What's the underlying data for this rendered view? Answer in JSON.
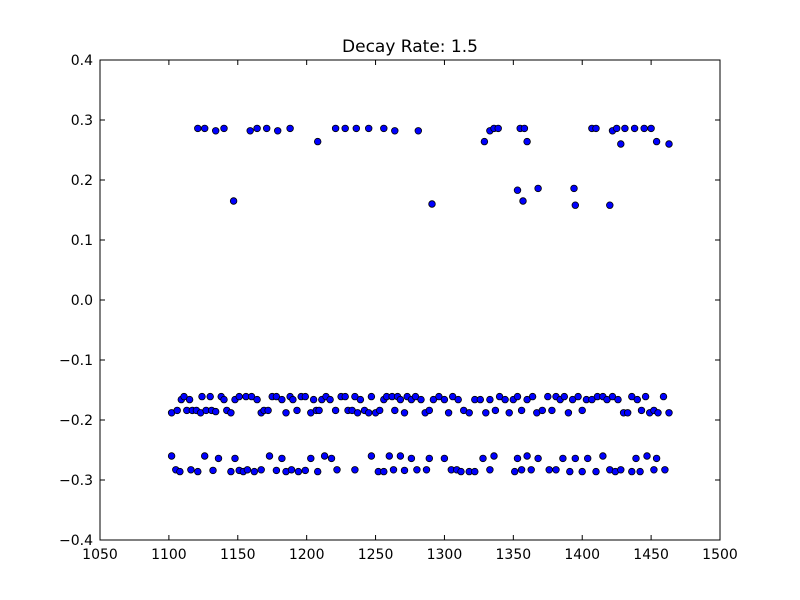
{
  "chart_data": {
    "type": "scatter",
    "title": "Decay Rate: 1.5",
    "xlabel": "",
    "ylabel": "",
    "xlim": [
      1050,
      1500
    ],
    "ylim": [
      -0.4,
      0.4
    ],
    "xticks": [
      1050,
      1100,
      1150,
      1200,
      1250,
      1300,
      1350,
      1400,
      1450,
      1500
    ],
    "yticks": [
      -0.4,
      -0.3,
      -0.2,
      -0.1,
      0.0,
      0.1,
      0.2,
      0.3,
      0.4
    ],
    "xtick_labels": [
      "1050",
      "1100",
      "1150",
      "1200",
      "1250",
      "1300",
      "1350",
      "1400",
      "1450",
      "1500"
    ],
    "ytick_labels": [
      "−0.4",
      "−0.3",
      "−0.2",
      "−0.1",
      "0.0",
      "0.1",
      "0.2",
      "0.3",
      "0.4"
    ],
    "grid": false,
    "legend": "none",
    "marker_color": "#0000ff",
    "marker_edge": "#000000",
    "points": [
      [
        1121,
        0.286
      ],
      [
        1126,
        0.286
      ],
      [
        1134,
        0.282
      ],
      [
        1140,
        0.286
      ],
      [
        1159,
        0.282
      ],
      [
        1164,
        0.286
      ],
      [
        1171,
        0.286
      ],
      [
        1179,
        0.282
      ],
      [
        1188,
        0.286
      ],
      [
        1208,
        0.264
      ],
      [
        1221,
        0.286
      ],
      [
        1228,
        0.286
      ],
      [
        1236,
        0.286
      ],
      [
        1245,
        0.286
      ],
      [
        1256,
        0.286
      ],
      [
        1264,
        0.282
      ],
      [
        1281,
        0.282
      ],
      [
        1329,
        0.264
      ],
      [
        1333,
        0.282
      ],
      [
        1336,
        0.286
      ],
      [
        1339,
        0.286
      ],
      [
        1355,
        0.286
      ],
      [
        1358,
        0.286
      ],
      [
        1360,
        0.264
      ],
      [
        1407,
        0.286
      ],
      [
        1410,
        0.286
      ],
      [
        1422,
        0.282
      ],
      [
        1425,
        0.286
      ],
      [
        1428,
        0.26
      ],
      [
        1431,
        0.286
      ],
      [
        1438,
        0.286
      ],
      [
        1445,
        0.286
      ],
      [
        1450,
        0.286
      ],
      [
        1454,
        0.264
      ],
      [
        1463,
        0.26
      ],
      [
        1147,
        0.165
      ],
      [
        1291,
        0.16
      ],
      [
        1353,
        0.183
      ],
      [
        1357,
        0.165
      ],
      [
        1368,
        0.186
      ],
      [
        1394,
        0.186
      ],
      [
        1395,
        0.158
      ],
      [
        1420,
        0.158
      ],
      [
        1102,
        -0.188
      ],
      [
        1106,
        -0.184
      ],
      [
        1109,
        -0.166
      ],
      [
        1111,
        -0.161
      ],
      [
        1113,
        -0.184
      ],
      [
        1115,
        -0.166
      ],
      [
        1117,
        -0.184
      ],
      [
        1120,
        -0.184
      ],
      [
        1123,
        -0.188
      ],
      [
        1124,
        -0.161
      ],
      [
        1127,
        -0.184
      ],
      [
        1130,
        -0.161
      ],
      [
        1131,
        -0.184
      ],
      [
        1134,
        -0.186
      ],
      [
        1138,
        -0.161
      ],
      [
        1140,
        -0.166
      ],
      [
        1142,
        -0.184
      ],
      [
        1145,
        -0.188
      ],
      [
        1148,
        -0.166
      ],
      [
        1151,
        -0.161
      ],
      [
        1156,
        -0.161
      ],
      [
        1160,
        -0.161
      ],
      [
        1164,
        -0.166
      ],
      [
        1167,
        -0.188
      ],
      [
        1169,
        -0.184
      ],
      [
        1172,
        -0.184
      ],
      [
        1175,
        -0.161
      ],
      [
        1178,
        -0.161
      ],
      [
        1182,
        -0.166
      ],
      [
        1185,
        -0.188
      ],
      [
        1188,
        -0.161
      ],
      [
        1190,
        -0.166
      ],
      [
        1193,
        -0.184
      ],
      [
        1196,
        -0.161
      ],
      [
        1199,
        -0.161
      ],
      [
        1203,
        -0.188
      ],
      [
        1205,
        -0.166
      ],
      [
        1207,
        -0.184
      ],
      [
        1209,
        -0.184
      ],
      [
        1211,
        -0.166
      ],
      [
        1214,
        -0.161
      ],
      [
        1217,
        -0.166
      ],
      [
        1221,
        -0.184
      ],
      [
        1225,
        -0.161
      ],
      [
        1228,
        -0.161
      ],
      [
        1230,
        -0.184
      ],
      [
        1233,
        -0.184
      ],
      [
        1235,
        -0.161
      ],
      [
        1237,
        -0.188
      ],
      [
        1239,
        -0.166
      ],
      [
        1242,
        -0.184
      ],
      [
        1245,
        -0.188
      ],
      [
        1247,
        -0.161
      ],
      [
        1250,
        -0.188
      ],
      [
        1253,
        -0.184
      ],
      [
        1256,
        -0.166
      ],
      [
        1258,
        -0.161
      ],
      [
        1262,
        -0.161
      ],
      [
        1264,
        -0.184
      ],
      [
        1266,
        -0.161
      ],
      [
        1268,
        -0.166
      ],
      [
        1271,
        -0.188
      ],
      [
        1273,
        -0.161
      ],
      [
        1276,
        -0.166
      ],
      [
        1279,
        -0.161
      ],
      [
        1283,
        -0.166
      ],
      [
        1286,
        -0.188
      ],
      [
        1289,
        -0.184
      ],
      [
        1292,
        -0.166
      ],
      [
        1296,
        -0.161
      ],
      [
        1300,
        -0.166
      ],
      [
        1303,
        -0.188
      ],
      [
        1306,
        -0.161
      ],
      [
        1310,
        -0.166
      ],
      [
        1314,
        -0.184
      ],
      [
        1318,
        -0.188
      ],
      [
        1322,
        -0.166
      ],
      [
        1326,
        -0.166
      ],
      [
        1330,
        -0.188
      ],
      [
        1333,
        -0.166
      ],
      [
        1337,
        -0.184
      ],
      [
        1340,
        -0.161
      ],
      [
        1344,
        -0.166
      ],
      [
        1347,
        -0.188
      ],
      [
        1350,
        -0.166
      ],
      [
        1353,
        -0.161
      ],
      [
        1356,
        -0.184
      ],
      [
        1360,
        -0.166
      ],
      [
        1364,
        -0.161
      ],
      [
        1367,
        -0.188
      ],
      [
        1371,
        -0.184
      ],
      [
        1375,
        -0.161
      ],
      [
        1378,
        -0.184
      ],
      [
        1381,
        -0.161
      ],
      [
        1384,
        -0.166
      ],
      [
        1387,
        -0.161
      ],
      [
        1390,
        -0.188
      ],
      [
        1393,
        -0.166
      ],
      [
        1397,
        -0.161
      ],
      [
        1400,
        -0.184
      ],
      [
        1403,
        -0.166
      ],
      [
        1407,
        -0.166
      ],
      [
        1411,
        -0.161
      ],
      [
        1415,
        -0.161
      ],
      [
        1418,
        -0.166
      ],
      [
        1422,
        -0.161
      ],
      [
        1426,
        -0.166
      ],
      [
        1430,
        -0.188
      ],
      [
        1433,
        -0.188
      ],
      [
        1436,
        -0.161
      ],
      [
        1440,
        -0.166
      ],
      [
        1443,
        -0.184
      ],
      [
        1446,
        -0.161
      ],
      [
        1449,
        -0.188
      ],
      [
        1452,
        -0.184
      ],
      [
        1455,
        -0.188
      ],
      [
        1459,
        -0.161
      ],
      [
        1463,
        -0.188
      ],
      [
        1102,
        -0.26
      ],
      [
        1105,
        -0.283
      ],
      [
        1108,
        -0.286
      ],
      [
        1116,
        -0.283
      ],
      [
        1121,
        -0.286
      ],
      [
        1126,
        -0.26
      ],
      [
        1132,
        -0.284
      ],
      [
        1136,
        -0.264
      ],
      [
        1145,
        -0.286
      ],
      [
        1148,
        -0.264
      ],
      [
        1151,
        -0.284
      ],
      [
        1154,
        -0.286
      ],
      [
        1157,
        -0.283
      ],
      [
        1162,
        -0.286
      ],
      [
        1167,
        -0.283
      ],
      [
        1173,
        -0.26
      ],
      [
        1178,
        -0.284
      ],
      [
        1182,
        -0.264
      ],
      [
        1185,
        -0.286
      ],
      [
        1189,
        -0.283
      ],
      [
        1194,
        -0.286
      ],
      [
        1199,
        -0.284
      ],
      [
        1203,
        -0.264
      ],
      [
        1208,
        -0.286
      ],
      [
        1213,
        -0.26
      ],
      [
        1218,
        -0.264
      ],
      [
        1222,
        -0.283
      ],
      [
        1235,
        -0.283
      ],
      [
        1247,
        -0.26
      ],
      [
        1252,
        -0.286
      ],
      [
        1256,
        -0.286
      ],
      [
        1260,
        -0.26
      ],
      [
        1263,
        -0.283
      ],
      [
        1268,
        -0.26
      ],
      [
        1271,
        -0.284
      ],
      [
        1276,
        -0.264
      ],
      [
        1280,
        -0.283
      ],
      [
        1287,
        -0.283
      ],
      [
        1289,
        -0.264
      ],
      [
        1300,
        -0.264
      ],
      [
        1305,
        -0.283
      ],
      [
        1309,
        -0.283
      ],
      [
        1312,
        -0.286
      ],
      [
        1318,
        -0.286
      ],
      [
        1322,
        -0.286
      ],
      [
        1328,
        -0.264
      ],
      [
        1333,
        -0.283
      ],
      [
        1336,
        -0.26
      ],
      [
        1351,
        -0.286
      ],
      [
        1353,
        -0.264
      ],
      [
        1356,
        -0.283
      ],
      [
        1360,
        -0.26
      ],
      [
        1363,
        -0.283
      ],
      [
        1368,
        -0.264
      ],
      [
        1376,
        -0.283
      ],
      [
        1381,
        -0.283
      ],
      [
        1386,
        -0.264
      ],
      [
        1391,
        -0.286
      ],
      [
        1395,
        -0.264
      ],
      [
        1400,
        -0.286
      ],
      [
        1404,
        -0.264
      ],
      [
        1410,
        -0.286
      ],
      [
        1415,
        -0.26
      ],
      [
        1420,
        -0.283
      ],
      [
        1424,
        -0.286
      ],
      [
        1428,
        -0.283
      ],
      [
        1436,
        -0.286
      ],
      [
        1439,
        -0.264
      ],
      [
        1442,
        -0.286
      ],
      [
        1447,
        -0.26
      ],
      [
        1452,
        -0.283
      ],
      [
        1454,
        -0.264
      ],
      [
        1460,
        -0.283
      ]
    ]
  }
}
